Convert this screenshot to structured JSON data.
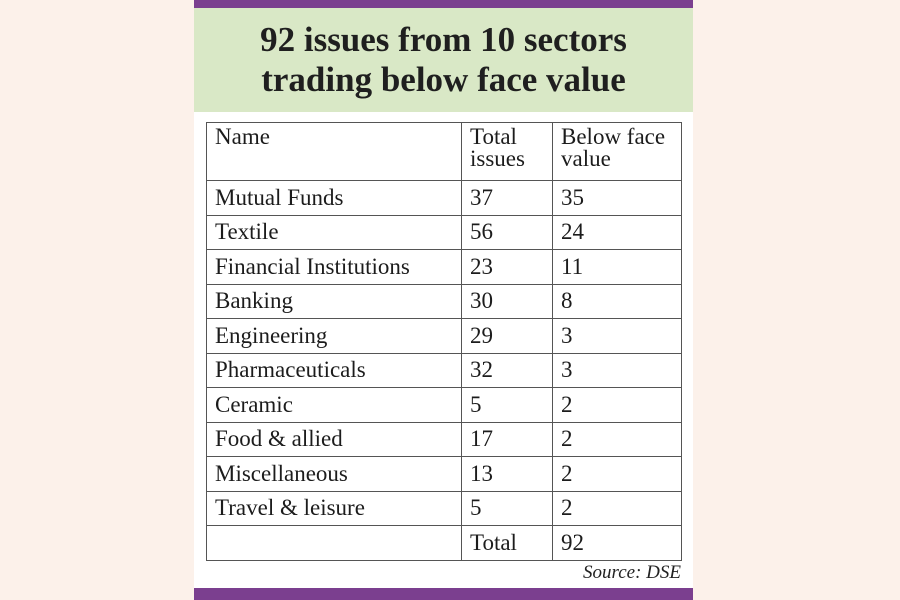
{
  "header": {
    "title_lines": [
      "92 issues from 10 sectors",
      "trading below face value"
    ]
  },
  "table": {
    "columns": [
      "Name",
      "Total issues",
      "Below face value"
    ],
    "rows": [
      [
        "Mutual Funds",
        37,
        35
      ],
      [
        "Textile",
        56,
        24
      ],
      [
        "Financial Institutions",
        23,
        11
      ],
      [
        "Banking",
        30,
        8
      ],
      [
        "Engineering",
        29,
        3
      ],
      [
        "Pharmaceuticals",
        32,
        3
      ],
      [
        "Ceramic",
        5,
        2
      ],
      [
        "Food & allied",
        17,
        2
      ],
      [
        "Miscellaneous",
        13,
        2
      ],
      [
        "Travel & leisure",
        5,
        2
      ]
    ],
    "total": {
      "label": "Total",
      "value": 92
    }
  },
  "source": "Source: DSE"
}
